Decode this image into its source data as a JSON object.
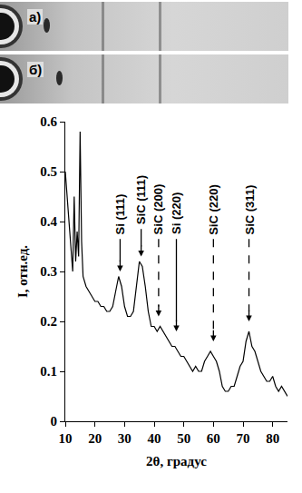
{
  "panels": [
    {
      "label": "а)"
    },
    {
      "label": "б)"
    }
  ],
  "chart_data": {
    "type": "line",
    "color": "#000000",
    "xlabel": "2θ, градус",
    "ylabel": "I, отн.ед.",
    "xlim": [
      10,
      85
    ],
    "ylim": [
      0,
      0.6
    ],
    "xticks": [
      10,
      20,
      30,
      40,
      50,
      60,
      70,
      80
    ],
    "yticks": [
      0,
      0.1,
      0.2,
      0.3,
      0.4,
      0.5,
      0.6
    ],
    "grid": false,
    "x": [
      10,
      11,
      12,
      12.5,
      13,
      13.5,
      14,
      14.5,
      15,
      15.5,
      16,
      17,
      18,
      19,
      20,
      21,
      22,
      23,
      24,
      25,
      26,
      27,
      28,
      29,
      30,
      31,
      32,
      33,
      34,
      35,
      36,
      37,
      38,
      39,
      40,
      41,
      42,
      43,
      44,
      45,
      46,
      47,
      48,
      49,
      50,
      51,
      52,
      53,
      54,
      55,
      56,
      57,
      58,
      59,
      60,
      61,
      62,
      63,
      64,
      65,
      66,
      67,
      68,
      69,
      70,
      71,
      72,
      73,
      74,
      75,
      76,
      77,
      78,
      79,
      80,
      81,
      82,
      83,
      84,
      85
    ],
    "values": [
      0.5,
      0.42,
      0.33,
      0.3,
      0.45,
      0.32,
      0.38,
      0.33,
      0.58,
      0.36,
      0.29,
      0.27,
      0.26,
      0.25,
      0.24,
      0.24,
      0.23,
      0.23,
      0.22,
      0.22,
      0.23,
      0.26,
      0.29,
      0.27,
      0.23,
      0.21,
      0.21,
      0.22,
      0.27,
      0.32,
      0.31,
      0.27,
      0.22,
      0.19,
      0.19,
      0.18,
      0.19,
      0.18,
      0.17,
      0.16,
      0.15,
      0.15,
      0.14,
      0.13,
      0.13,
      0.12,
      0.11,
      0.1,
      0.11,
      0.1,
      0.1,
      0.12,
      0.13,
      0.14,
      0.13,
      0.12,
      0.1,
      0.07,
      0.06,
      0.06,
      0.07,
      0.07,
      0.09,
      0.11,
      0.12,
      0.16,
      0.18,
      0.15,
      0.14,
      0.12,
      0.1,
      0.09,
      0.08,
      0.08,
      0.09,
      0.07,
      0.06,
      0.07,
      0.06,
      0.05
    ],
    "annotations": [
      {
        "text": "Si (111)",
        "x": 28.5,
        "y": 0.3,
        "line_style": "solid"
      },
      {
        "text": "SiC (111)",
        "x": 35.6,
        "y": 0.33,
        "line_style": "solid"
      },
      {
        "text": "SiC (200)",
        "x": 41.5,
        "y": 0.21,
        "line_style": "dashed"
      },
      {
        "text": "Si (220)",
        "x": 47.5,
        "y": 0.18,
        "line_style": "solid"
      },
      {
        "text": "SiC (220)",
        "x": 60,
        "y": 0.16,
        "line_style": "dashed"
      },
      {
        "text": "SiC (311)",
        "x": 72,
        "y": 0.2,
        "line_style": "dashed"
      }
    ]
  }
}
